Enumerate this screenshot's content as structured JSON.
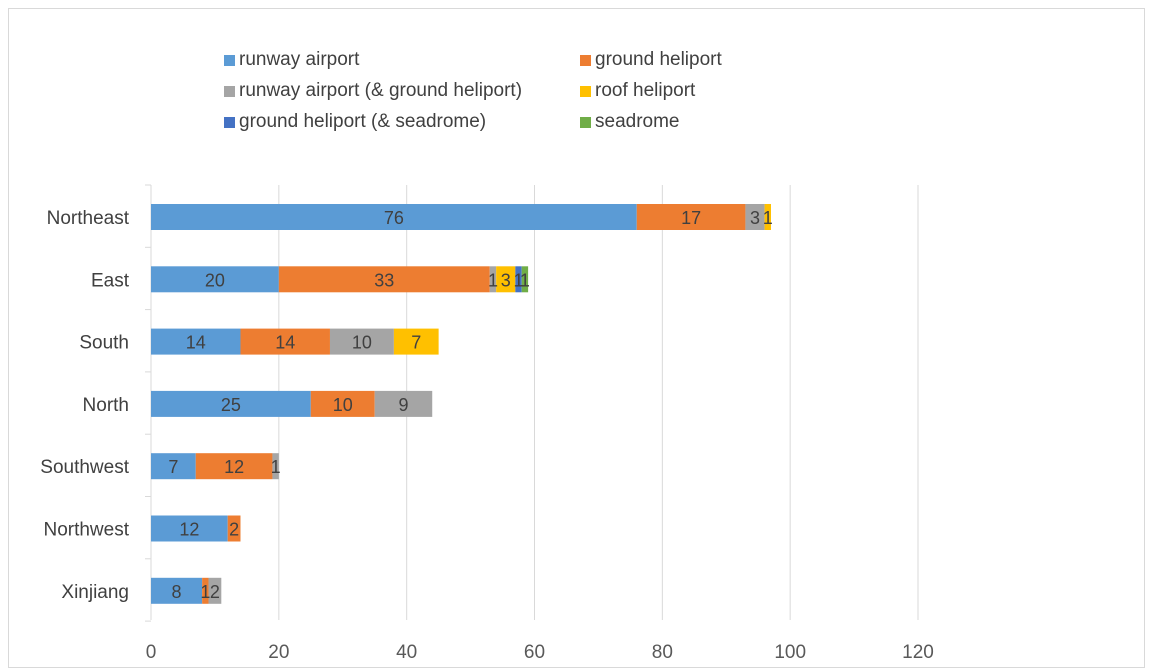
{
  "chart_data": {
    "type": "bar",
    "orientation": "horizontal",
    "stacked": true,
    "title": "",
    "xlabel": "",
    "ylabel": "",
    "categories": [
      "Northeast",
      "East",
      "South",
      "North",
      "Southwest",
      "Northwest",
      "Xinjiang"
    ],
    "series": [
      {
        "name": "runway airport",
        "color": "#5b9bd5",
        "values": [
          76,
          20,
          14,
          25,
          7,
          12,
          8
        ]
      },
      {
        "name": "ground heliport",
        "color": "#ed7d31",
        "values": [
          17,
          33,
          14,
          10,
          12,
          2,
          1
        ]
      },
      {
        "name": "runway airport (& ground heliport)",
        "color": "#a5a5a5",
        "values": [
          3,
          1,
          10,
          9,
          1,
          0,
          2
        ]
      },
      {
        "name": "roof heliport",
        "color": "#ffc000",
        "values": [
          1,
          3,
          7,
          0,
          0,
          0,
          0
        ]
      },
      {
        "name": "ground heliport (& seadrome)",
        "color": "#4472c4",
        "values": [
          0,
          1,
          0,
          0,
          0,
          0,
          0
        ]
      },
      {
        "name": "seadrome",
        "color": "#70ad47",
        "values": [
          0,
          1,
          0,
          0,
          0,
          0,
          0
        ]
      }
    ],
    "xlim": [
      0,
      120
    ],
    "x_ticks": [
      "0",
      "20",
      "40",
      "60",
      "80",
      "100",
      "120"
    ],
    "grid": true,
    "legend_position": "top",
    "data_labels": true
  }
}
